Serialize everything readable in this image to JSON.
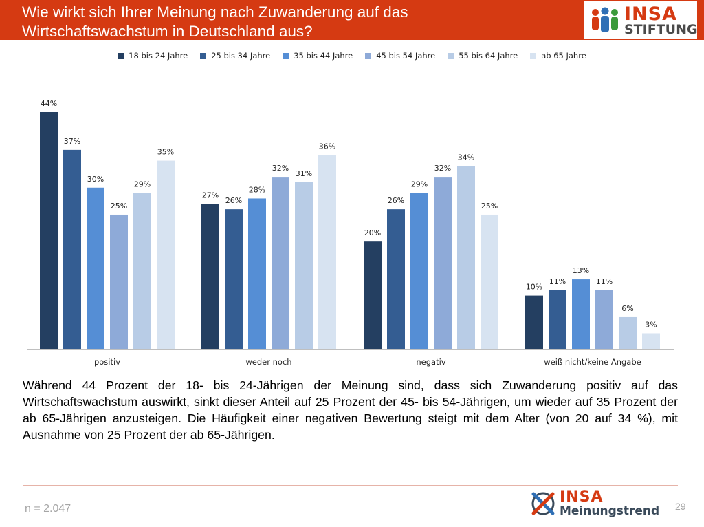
{
  "header": {
    "title_line1": "Wie wirkt sich Ihrer Meinung nach Zuwanderung auf das",
    "title_line2": "Wirtschaftswachstum in Deutschland aus?",
    "logo_brand": "INSA",
    "logo_sub": "STIFTUNG"
  },
  "chart_data": {
    "type": "bar",
    "title": "Wie wirkt sich Ihrer Meinung nach Zuwanderung auf das Wirtschaftswachstum in Deutschland aus?",
    "categories": [
      "positiv",
      "weder noch",
      "negativ",
      "weiß nicht/keine Angabe"
    ],
    "series": [
      {
        "name": "18 bis 24 Jahre",
        "values": [
          44,
          27,
          20,
          10
        ],
        "color": "#243f61"
      },
      {
        "name": "25 bis 34 Jahre",
        "values": [
          37,
          26,
          26,
          11
        ],
        "color": "#345d92"
      },
      {
        "name": "35 bis 44 Jahre",
        "values": [
          30,
          28,
          29,
          13
        ],
        "color": "#558ed5"
      },
      {
        "name": "45 bis 54 Jahre",
        "values": [
          25,
          32,
          32,
          11
        ],
        "color": "#8eaad8"
      },
      {
        "name": "55 bis 64 Jahre",
        "values": [
          29,
          31,
          34,
          6
        ],
        "color": "#b8cce6"
      },
      {
        "name": "ab 65 Jahre",
        "values": [
          35,
          36,
          25,
          3
        ],
        "color": "#d7e3f1"
      }
    ],
    "value_suffix": "%",
    "ylim": [
      0,
      44
    ],
    "grid": false,
    "legend": "top",
    "xlabel": "",
    "ylabel": ""
  },
  "description": "Während 44 Prozent der 18- bis 24-Jährigen der Meinung sind, dass sich Zuwanderung positiv auf das Wirtschaftswachstum auswirkt, sinkt dieser Anteil auf 25 Prozent der 45- bis 54-Jährigen, um wieder auf 35 Prozent der ab 65-Jährigen anzusteigen. Die Häufigkeit einer negativen Bewertung steigt mit dem Alter (von 20 auf 34 %), mit Ausnahme von 25 Prozent der ab 65-Jährigen.",
  "footer": {
    "sample": "n = 2.047",
    "logo_brand": "INSA",
    "logo_sub": "Meinungstrend",
    "page_number": "29"
  },
  "icons": {
    "header_logo": "people-group-icon",
    "footer_logo": "x-mark-icon"
  }
}
